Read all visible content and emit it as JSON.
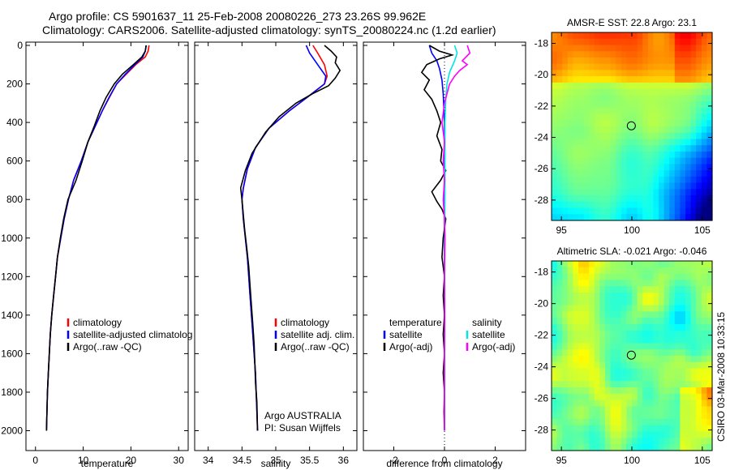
{
  "title": {
    "line1": "Argo profile: CS 5901637_11 25-Feb-2008 20080226_273 23.26S 99.962E",
    "line2": "Climatology: CARS2006. Satellite-adjusted climatology: synTS_20080224.nc (1.2d earlier)"
  },
  "side_label": "CSIRO 03-Mar-2008 10:33:15",
  "colors": {
    "red": "#ff0000",
    "blue": "#0000ff",
    "black": "#000000",
    "cyan": "#00e5e5",
    "magenta": "#ff00ff"
  },
  "chart_data": [
    {
      "type": "line",
      "id": "temperature",
      "xlabel": "temperature",
      "ylabel": "",
      "xlim": [
        -2,
        32
      ],
      "ylim": [
        0,
        2100
      ],
      "y_reversed": true,
      "xticks": [
        0,
        10,
        20,
        30
      ],
      "yticks": [
        0,
        200,
        400,
        600,
        800,
        1000,
        1200,
        1400,
        1600,
        1800,
        2000
      ],
      "legend": {
        "placement": "lower-middle",
        "entries": [
          "climatology",
          "satellite-adjusted climatolog",
          "Argo(..raw -QC)"
        ]
      },
      "series": [
        {
          "name": "climatology",
          "color": "red",
          "points": [
            [
              23.8,
              0
            ],
            [
              23.6,
              30
            ],
            [
              23,
              60
            ],
            [
              21,
              100
            ],
            [
              19,
              150
            ],
            [
              17,
              200
            ],
            [
              15.5,
              270
            ],
            [
              14,
              340
            ],
            [
              12.5,
              420
            ],
            [
              11,
              500
            ],
            [
              9.6,
              600
            ],
            [
              8,
              700
            ],
            [
              6.9,
              800
            ],
            [
              6,
              900
            ],
            [
              5.3,
              1000
            ],
            [
              4.6,
              1100
            ],
            [
              4.2,
              1200
            ],
            [
              3.8,
              1300
            ],
            [
              3.4,
              1400
            ],
            [
              3.1,
              1500
            ],
            [
              2.9,
              1600
            ],
            [
              2.7,
              1700
            ],
            [
              2.5,
              1800
            ],
            [
              2.4,
              1900
            ],
            [
              2.3,
              2000
            ]
          ]
        },
        {
          "name": "satellite-adjusted climatology",
          "color": "blue",
          "points": [
            [
              23.2,
              0
            ],
            [
              23,
              30
            ],
            [
              22.5,
              60
            ],
            [
              20.8,
              100
            ],
            [
              18.8,
              150
            ],
            [
              17,
              200
            ],
            [
              15.4,
              270
            ],
            [
              14,
              340
            ],
            [
              12.5,
              420
            ],
            [
              11,
              500
            ],
            [
              9.6,
              600
            ],
            [
              8,
              700
            ],
            [
              6.9,
              800
            ],
            [
              6,
              900
            ],
            [
              5.3,
              1000
            ],
            [
              4.6,
              1100
            ],
            [
              4.2,
              1200
            ],
            [
              3.8,
              1300
            ],
            [
              3.4,
              1400
            ],
            [
              3.1,
              1500
            ],
            [
              2.9,
              1600
            ],
            [
              2.7,
              1700
            ],
            [
              2.5,
              1800
            ],
            [
              2.4,
              1900
            ],
            [
              2.3,
              2000
            ]
          ]
        },
        {
          "name": "Argo(..raw -QC)",
          "color": "black",
          "points": [
            [
              23.2,
              0
            ],
            [
              23,
              30
            ],
            [
              22.3,
              60
            ],
            [
              20.5,
              100
            ],
            [
              18.2,
              150
            ],
            [
              16.5,
              200
            ],
            [
              14.8,
              270
            ],
            [
              13.5,
              340
            ],
            [
              12.3,
              420
            ],
            [
              11,
              500
            ],
            [
              9.8,
              600
            ],
            [
              8.5,
              700
            ],
            [
              6.8,
              800
            ],
            [
              5.9,
              900
            ],
            [
              5.2,
              1000
            ],
            [
              4.6,
              1100
            ],
            [
              4.2,
              1200
            ],
            [
              3.8,
              1300
            ],
            [
              3.4,
              1400
            ],
            [
              3.1,
              1500
            ],
            [
              2.9,
              1600
            ],
            [
              2.7,
              1700
            ],
            [
              2.5,
              1800
            ],
            [
              2.4,
              1900
            ],
            [
              2.3,
              2000
            ]
          ]
        }
      ]
    },
    {
      "type": "line",
      "id": "salinity",
      "xlabel": "salinity",
      "xlim": [
        33.8,
        36.2
      ],
      "ylim": [
        0,
        2100
      ],
      "y_reversed": true,
      "xticks": [
        34,
        34.5,
        35,
        35.5,
        36
      ],
      "legend": {
        "placement": "lower-middle",
        "entries": [
          "climatology",
          "satellite adj. clim.",
          "Argo(..raw -QC)"
        ]
      },
      "annotation": [
        "Argo AUSTRALIA",
        "PI: Susan Wijffels"
      ],
      "series": [
        {
          "name": "climatology",
          "color": "red",
          "points": [
            [
              35.55,
              0
            ],
            [
              35.62,
              40
            ],
            [
              35.72,
              100
            ],
            [
              35.76,
              160
            ],
            [
              35.72,
              200
            ],
            [
              35.5,
              260
            ],
            [
              35.2,
              340
            ],
            [
              34.9,
              430
            ],
            [
              34.7,
              530
            ],
            [
              34.58,
              640
            ],
            [
              34.52,
              740
            ],
            [
              34.5,
              800
            ],
            [
              34.52,
              900
            ],
            [
              34.55,
              1000
            ],
            [
              34.58,
              1100
            ],
            [
              34.6,
              1200
            ],
            [
              34.62,
              1300
            ],
            [
              34.64,
              1400
            ],
            [
              34.66,
              1500
            ],
            [
              34.68,
              1600
            ],
            [
              34.7,
              1700
            ],
            [
              34.71,
              1800
            ],
            [
              34.72,
              1900
            ],
            [
              34.73,
              2000
            ]
          ]
        },
        {
          "name": "satellite adj. clim.",
          "color": "blue",
          "points": [
            [
              35.45,
              0
            ],
            [
              35.5,
              40
            ],
            [
              35.62,
              100
            ],
            [
              35.74,
              160
            ],
            [
              35.72,
              200
            ],
            [
              35.5,
              260
            ],
            [
              35.2,
              340
            ],
            [
              34.9,
              430
            ],
            [
              34.7,
              530
            ],
            [
              34.58,
              640
            ],
            [
              34.52,
              740
            ],
            [
              34.5,
              800
            ],
            [
              34.52,
              900
            ],
            [
              34.55,
              1000
            ],
            [
              34.58,
              1100
            ],
            [
              34.6,
              1200
            ],
            [
              34.62,
              1300
            ],
            [
              34.64,
              1400
            ],
            [
              34.66,
              1500
            ],
            [
              34.68,
              1600
            ],
            [
              34.7,
              1700
            ],
            [
              34.71,
              1800
            ],
            [
              34.72,
              1900
            ],
            [
              34.73,
              2000
            ]
          ]
        },
        {
          "name": "Argo(..raw -QC)",
          "color": "black",
          "points": [
            [
              35.72,
              0
            ],
            [
              35.82,
              30
            ],
            [
              35.9,
              60
            ],
            [
              35.88,
              90
            ],
            [
              35.95,
              130
            ],
            [
              35.88,
              170
            ],
            [
              35.78,
              210
            ],
            [
              35.55,
              250
            ],
            [
              35.3,
              300
            ],
            [
              35.05,
              370
            ],
            [
              34.85,
              450
            ],
            [
              34.65,
              560
            ],
            [
              34.55,
              650
            ],
            [
              34.48,
              740
            ],
            [
              34.5,
              800
            ],
            [
              34.52,
              880
            ],
            [
              34.54,
              960
            ],
            [
              34.57,
              1050
            ],
            [
              34.6,
              1150
            ],
            [
              34.62,
              1250
            ],
            [
              34.64,
              1350
            ],
            [
              34.66,
              1450
            ],
            [
              34.68,
              1550
            ],
            [
              34.69,
              1650
            ],
            [
              34.7,
              1750
            ],
            [
              34.72,
              1850
            ],
            [
              34.73,
              2000
            ]
          ]
        }
      ]
    },
    {
      "type": "line",
      "id": "difference",
      "xlabel": "difference from climatology",
      "xlim": [
        -3.2,
        3.2
      ],
      "ylim": [
        0,
        2100
      ],
      "y_reversed": true,
      "xticks": [
        -2,
        0,
        2
      ],
      "legend": {
        "placement": "lower-middle",
        "groups": [
          {
            "header": "temperature",
            "entries": [
              "satellite",
              "Argo(-adj)"
            ]
          },
          {
            "header": "salinity",
            "entries": [
              "satellite",
              "Argo(-adj)"
            ]
          }
        ]
      },
      "series": [
        {
          "name": "temperature satellite",
          "color": "blue",
          "points": [
            [
              -0.6,
              0
            ],
            [
              -0.5,
              40
            ],
            [
              -0.3,
              80
            ],
            [
              -0.2,
              120
            ],
            [
              -0.1,
              180
            ],
            [
              -0.05,
              250
            ],
            [
              0,
              400
            ],
            [
              0,
              2000
            ]
          ]
        },
        {
          "name": "temperature Argo(-adj)",
          "color": "black",
          "points": [
            [
              -0.6,
              0
            ],
            [
              -0.2,
              30
            ],
            [
              0.3,
              50
            ],
            [
              -0.2,
              70
            ],
            [
              -0.7,
              100
            ],
            [
              -0.9,
              140
            ],
            [
              -0.6,
              180
            ],
            [
              -0.8,
              230
            ],
            [
              -0.5,
              280
            ],
            [
              -0.3,
              340
            ],
            [
              -0.15,
              400
            ],
            [
              -0.3,
              470
            ],
            [
              -0.1,
              540
            ],
            [
              -0.15,
              600
            ],
            [
              0.05,
              650
            ],
            [
              -0.15,
              700
            ],
            [
              -0.5,
              760
            ],
            [
              -0.3,
              810
            ],
            [
              -0.1,
              850
            ],
            [
              0.05,
              900
            ],
            [
              -0.05,
              1000
            ],
            [
              -0.1,
              1100
            ],
            [
              0,
              1200
            ],
            [
              -0.05,
              1300
            ],
            [
              0,
              1400
            ],
            [
              -0.05,
              1500
            ],
            [
              0,
              1600
            ],
            [
              -0.05,
              1700
            ],
            [
              0,
              1800
            ],
            [
              -0.02,
              1900
            ],
            [
              0,
              2000
            ]
          ]
        },
        {
          "name": "salinity satellite",
          "color": "cyan",
          "points": [
            [
              0.4,
              0
            ],
            [
              0.5,
              40
            ],
            [
              0.4,
              80
            ],
            [
              0.2,
              140
            ],
            [
              0.1,
              200
            ],
            [
              0.05,
              280
            ],
            [
              0.02,
              400
            ],
            [
              0.02,
              700
            ],
            [
              0.01,
              1000
            ],
            [
              0.01,
              2000
            ]
          ]
        },
        {
          "name": "salinity Argo(-adj)",
          "color": "magenta",
          "points": [
            [
              0.9,
              0
            ],
            [
              1,
              40
            ],
            [
              0.7,
              80
            ],
            [
              0.9,
              100
            ],
            [
              0.6,
              130
            ],
            [
              0.4,
              160
            ],
            [
              0.2,
              200
            ],
            [
              0,
              300
            ],
            [
              -0.1,
              400
            ],
            [
              0,
              500
            ],
            [
              -0.05,
              600
            ],
            [
              0,
              700
            ],
            [
              -0.05,
              800
            ],
            [
              0,
              900
            ],
            [
              0.02,
              1000
            ],
            [
              0,
              1200
            ],
            [
              0.01,
              1400
            ],
            [
              0,
              1600
            ],
            [
              0,
              2000
            ]
          ]
        }
      ]
    },
    {
      "type": "heatmap",
      "id": "sst-map",
      "title": "AMSR-E SST: 22.8 Argo: 23.1",
      "xlim": [
        94.3,
        105.7
      ],
      "ylim": [
        -29.3,
        -17.3
      ],
      "xticks": [
        95,
        100,
        105
      ],
      "yticks": [
        -18,
        -20,
        -22,
        -24,
        -26,
        -28
      ],
      "marker": {
        "lon": 99.962,
        "lat": -23.26
      }
    },
    {
      "type": "heatmap",
      "id": "sla-map",
      "title": "Altimetric SLA: -0.021 Argo: -0.046",
      "xlim": [
        94.3,
        105.7
      ],
      "ylim": [
        -29.3,
        -17.3
      ],
      "xticks": [
        95,
        100,
        105
      ],
      "yticks": [
        -18,
        -20,
        -22,
        -24,
        -26,
        -28
      ],
      "marker": {
        "lon": 99.962,
        "lat": -23.26
      }
    }
  ]
}
